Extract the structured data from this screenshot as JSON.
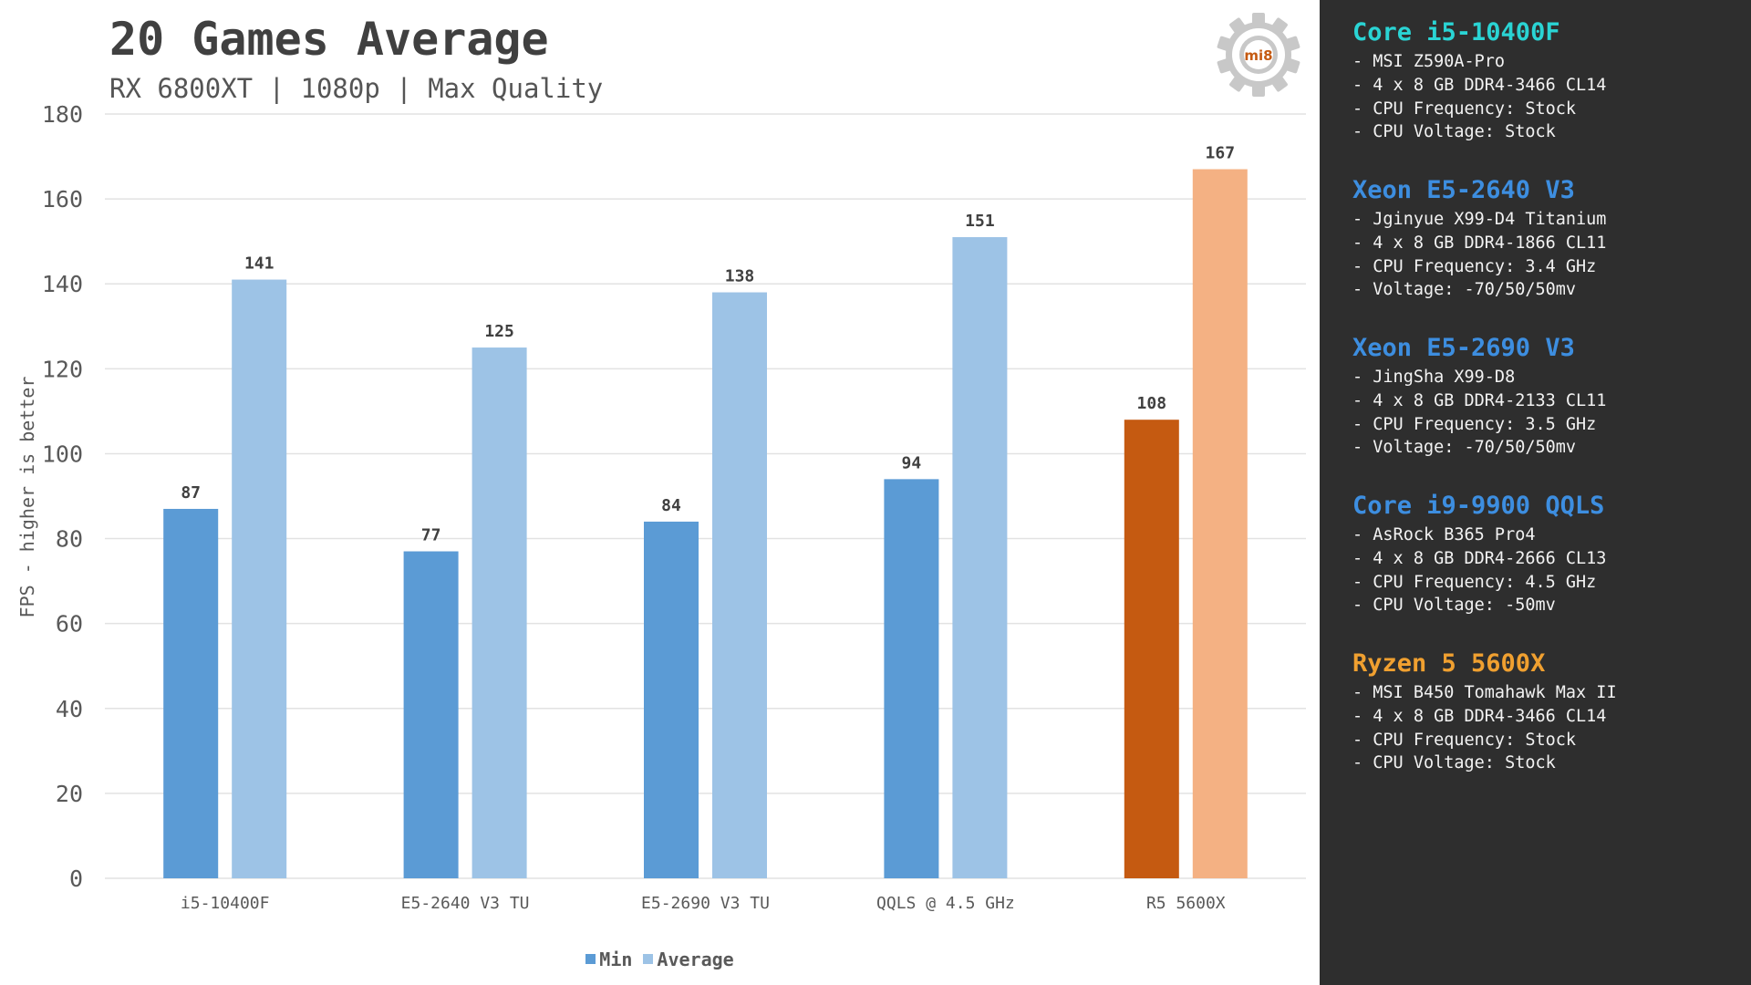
{
  "chart_data": {
    "type": "bar",
    "title": "20 Games Average",
    "subtitle": "RX 6800XT | 1080p | Max Quality",
    "ylabel": "FPS - higher is better",
    "xlabel": "",
    "ylim": [
      0,
      180
    ],
    "yticks": [
      0,
      20,
      40,
      60,
      80,
      100,
      120,
      140,
      160,
      180
    ],
    "grid": true,
    "legend_position": "bottom",
    "categories": [
      "i5-10400F",
      "E5-2640 V3 TU",
      "E5-2690 V3 TU",
      "QQLS @ 4.5 GHz",
      "R5 5600X"
    ],
    "series": [
      {
        "name": "Min",
        "values": [
          87,
          77,
          84,
          94,
          108
        ],
        "color": "#5b9bd5",
        "highlight_color": "#c55a11"
      },
      {
        "name": "Average",
        "values": [
          141,
          125,
          138,
          151,
          167
        ],
        "color": "#9dc3e6",
        "highlight_color": "#f4b183"
      }
    ],
    "highlight_category_index": 4
  },
  "logo": {
    "text": "mi8",
    "icon": "gear-icon",
    "color": "#c55a11"
  },
  "cpus": [
    {
      "name": "Core i5-10400F",
      "color": "#2ad4d4",
      "lines": [
        "- MSI Z590A-Pro",
        "- 4 x 8 GB DDR4-3466 CL14",
        "- CPU Frequency: Stock",
        "- CPU Voltage: Stock"
      ]
    },
    {
      "name": "Xeon E5-2640 V3",
      "color": "#3d8ee0",
      "lines": [
        "- Jginyue X99-D4 Titanium",
        "- 4 x 8 GB DDR4-1866 CL11",
        "- CPU Frequency: 3.4 GHz",
        "- Voltage: -70/50/50mv"
      ]
    },
    {
      "name": "Xeon E5-2690 V3",
      "color": "#3d8ee0",
      "lines": [
        "- JingSha X99-D8",
        "- 4 x 8 GB DDR4-2133 CL11",
        "- CPU Frequency: 3.5 GHz",
        "- Voltage: -70/50/50mv"
      ]
    },
    {
      "name": "Core i9-9900 QQLS",
      "color": "#3d8ee0",
      "lines": [
        "- AsRock B365 Pro4",
        "- 4 x 8 GB DDR4-2666 CL13",
        "- CPU Frequency: 4.5 GHz",
        "- CPU Voltage: -50mv"
      ]
    },
    {
      "name": "Ryzen 5 5600X",
      "color": "#f0a030",
      "lines": [
        "- MSI B450 Tomahawk Max II",
        "- 4 x 8 GB DDR4-3466 CL14",
        "- CPU Frequency: Stock",
        "- CPU Voltage: Stock"
      ]
    }
  ]
}
